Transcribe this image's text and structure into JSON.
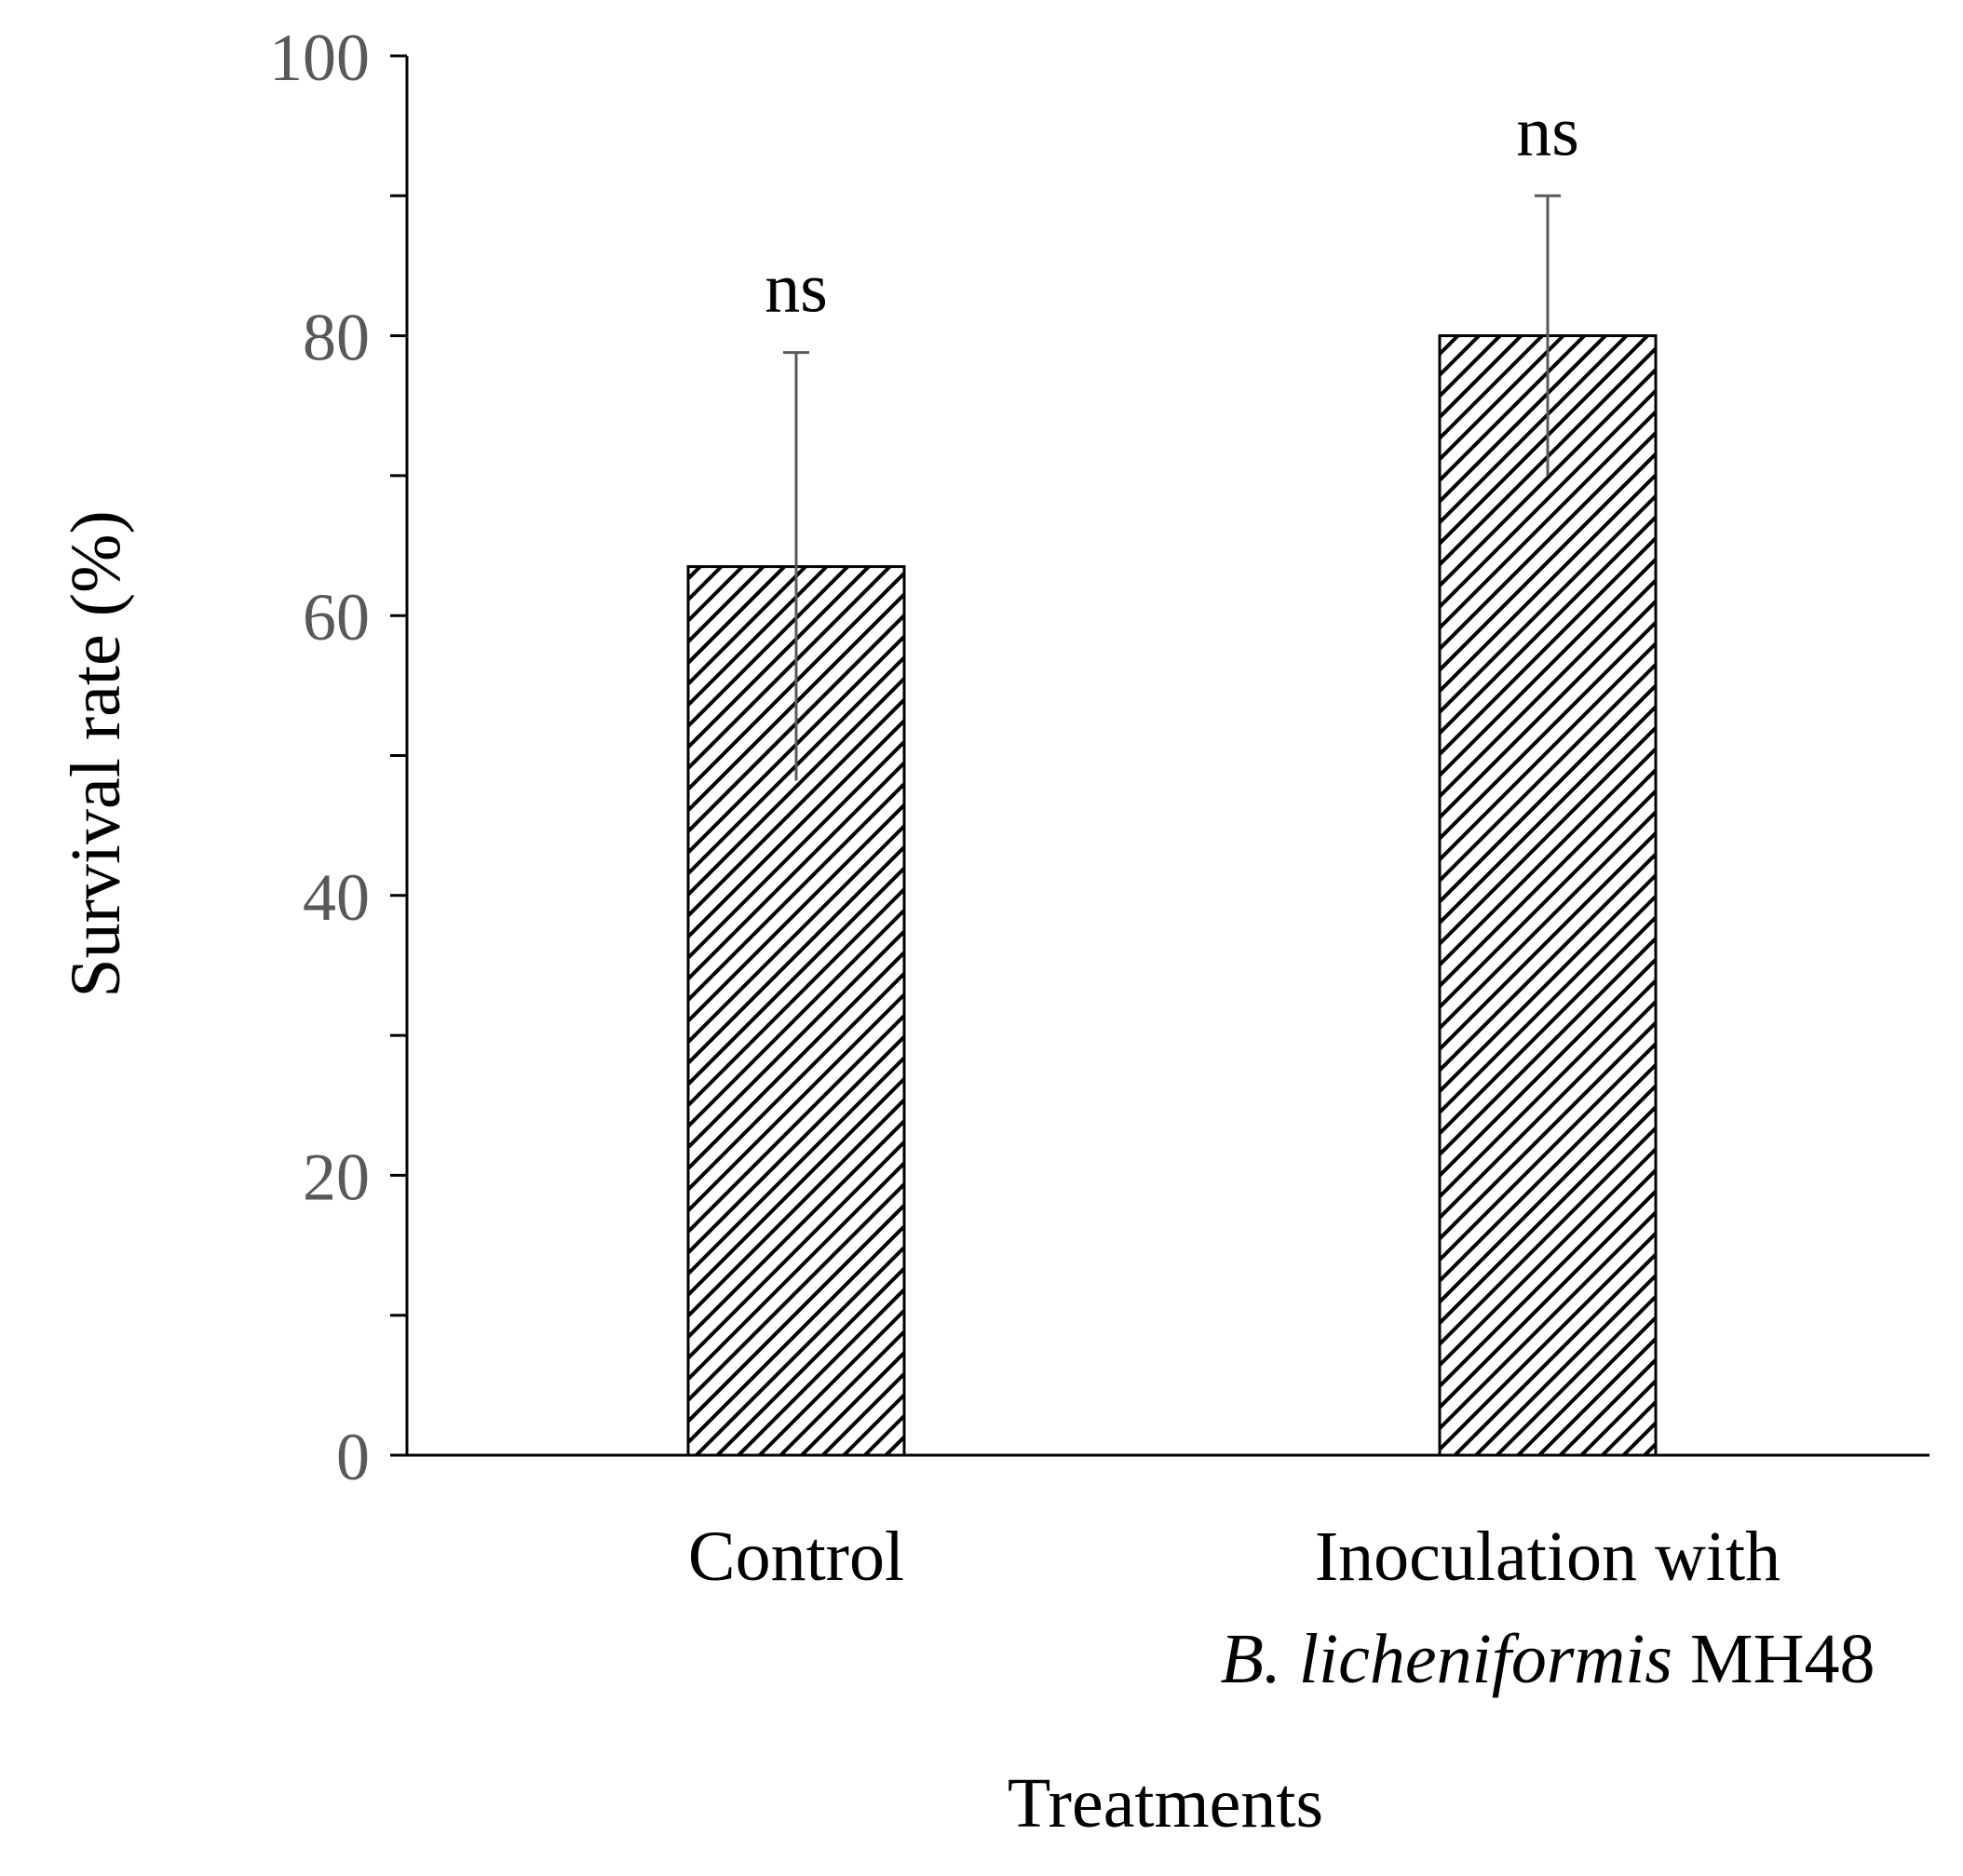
{
  "chart_data": {
    "type": "bar",
    "title": "",
    "xlabel": "Treatments",
    "ylabel": "Survival rate (%)",
    "ylim": [
      0,
      100
    ],
    "yticks": [
      0,
      20,
      40,
      60,
      80,
      100
    ],
    "yminor_step": 10,
    "grid": false,
    "categories": [
      {
        "name": "Control",
        "lines": [
          [
            {
              "text": "Control",
              "italic": false
            }
          ]
        ]
      },
      {
        "name": "Inoculation with B. licheniformis MH48",
        "lines": [
          [
            {
              "text": "Inoculation with",
              "italic": false
            }
          ],
          [
            {
              "text": "B. licheniformis",
              "italic": true
            },
            {
              "text": " MH48",
              "italic": false
            }
          ]
        ]
      }
    ],
    "values": [
      63.5,
      80
    ],
    "error": [
      15.3,
      10
    ],
    "significance": [
      "ns",
      "ns"
    ],
    "bar_fill": "diagonal-hatch",
    "colors": {
      "bar_stroke": "#000000",
      "hatch": "#000000",
      "axis": "#000000",
      "tick_label": "#595959",
      "error_bar": "#595959"
    }
  }
}
